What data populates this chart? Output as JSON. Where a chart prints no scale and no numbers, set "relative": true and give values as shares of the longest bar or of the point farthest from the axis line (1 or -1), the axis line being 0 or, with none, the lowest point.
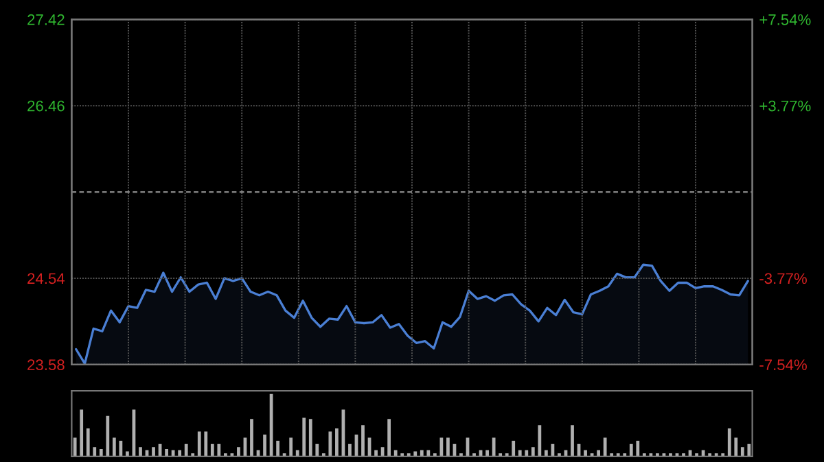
{
  "chart_data": [
    {
      "type": "area",
      "categories": [
        null,
        null,
        null,
        null,
        null,
        null,
        null,
        null,
        null,
        null,
        null,
        null,
        null,
        null,
        null,
        null,
        null,
        null,
        null,
        null,
        null,
        null,
        null,
        null,
        null,
        null,
        null,
        null,
        null,
        null,
        null,
        null,
        null,
        null,
        null,
        null,
        null,
        null,
        null,
        null,
        null,
        null,
        null,
        null,
        null,
        null,
        null,
        null,
        null,
        null,
        null,
        null,
        null,
        null,
        null,
        null,
        null,
        null,
        null,
        null,
        null,
        null,
        null,
        null,
        null,
        null,
        null,
        null,
        null,
        null,
        null,
        null,
        null,
        null,
        null,
        null,
        null,
        null
      ],
      "series": [
        {
          "color": "#4a7fd4",
          "values": [
            23.75,
            23.59,
            23.98,
            23.95,
            24.18,
            24.05,
            24.23,
            24.21,
            24.41,
            24.39,
            24.6,
            24.39,
            24.55,
            24.39,
            24.47,
            24.49,
            24.31,
            24.54,
            24.51,
            24.54,
            24.39,
            24.35,
            24.39,
            24.35,
            24.18,
            24.1,
            24.29,
            24.1,
            24.0,
            24.09,
            24.08,
            24.23,
            24.05,
            24.04,
            24.05,
            24.13,
            23.99,
            24.03,
            23.9,
            23.82,
            23.84,
            23.76,
            24.05,
            24.0,
            24.11,
            24.4,
            24.31,
            24.34,
            24.29,
            24.35,
            24.36,
            24.25,
            24.18,
            24.06,
            24.21,
            24.13,
            24.3,
            24.16,
            24.14,
            24.36,
            24.4,
            24.45,
            24.59,
            24.55,
            24.55,
            24.69,
            24.68,
            24.51,
            24.4,
            24.49,
            24.49,
            24.43,
            24.45,
            24.45,
            24.41,
            24.36,
            24.35,
            24.51
          ]
        }
      ],
      "ylim": [
        23.58,
        27.42
      ],
      "yticks": [
        23.58,
        24.54,
        26.46,
        27.42
      ],
      "y2lim": [
        -7.54,
        7.54
      ],
      "y2ticks": [
        {
          "value": -7.54,
          "label": "-7.54%"
        },
        {
          "value": -3.77,
          "label": "-3.77%"
        },
        {
          "value": 3.77,
          "label": "+3.77%"
        },
        {
          "value": 7.54,
          "label": "+7.54%"
        }
      ],
      "ref_lines": [
        {
          "axis": "y",
          "value": 25.5,
          "color": "#888888",
          "line_style": "dashed"
        }
      ],
      "grid": true,
      "legend": false
    },
    {
      "type": "bar",
      "relative": true,
      "legend": false,
      "color": "#b0b0b0",
      "categories": [
        null,
        null,
        null,
        null,
        null,
        null,
        null,
        null,
        null,
        null,
        null,
        null,
        null,
        null,
        null,
        null,
        null,
        null,
        null,
        null,
        null,
        null,
        null,
        null,
        null,
        null,
        null,
        null,
        null,
        null,
        null,
        null,
        null,
        null,
        null,
        null,
        null,
        null,
        null,
        null,
        null,
        null,
        null,
        null,
        null,
        null,
        null,
        null,
        null,
        null,
        null,
        null,
        null,
        null,
        null,
        null,
        null,
        null,
        null,
        null,
        null,
        null,
        null,
        null,
        null,
        null,
        null,
        null,
        null,
        null,
        null,
        null,
        null,
        null,
        null,
        null,
        null,
        null,
        null,
        null,
        null,
        null,
        null,
        null,
        null,
        null,
        null,
        null,
        null,
        null,
        null,
        null,
        null,
        null,
        null,
        null,
        null,
        null,
        null,
        null,
        null,
        null,
        null,
        null
      ],
      "values": [
        0.3,
        0.75,
        0.45,
        0.15,
        0.12,
        0.65,
        0.3,
        0.25,
        0.08,
        0.75,
        0.15,
        0.1,
        0.15,
        0.2,
        0.12,
        0.1,
        0.1,
        0.2,
        0.05,
        0.4,
        0.4,
        0.2,
        0.2,
        0.05,
        0.05,
        0.15,
        0.3,
        0.6,
        0.1,
        0.35,
        1.0,
        0.25,
        0.05,
        0.3,
        0.1,
        0.62,
        0.6,
        0.2,
        0.05,
        0.4,
        0.45,
        0.75,
        0.2,
        0.35,
        0.5,
        0.3,
        0.1,
        0.15,
        0.6,
        0.1,
        0.05,
        0.05,
        0.08,
        0.1,
        0.1,
        0.05,
        0.3,
        0.3,
        0.2,
        0.05,
        0.3,
        0.05,
        0.1,
        0.1,
        0.3,
        0.05,
        0.05,
        0.25,
        0.1,
        0.1,
        0.15,
        0.5,
        0.1,
        0.2,
        0.05,
        0.1,
        0.5,
        0.2,
        0.1,
        0.05,
        0.1,
        0.3,
        0.05,
        0.05,
        0.05,
        0.2,
        0.25,
        0.05,
        0.05,
        0.05,
        0.05,
        0.05,
        0.05,
        0.05,
        0.1,
        0.05,
        0.1,
        0.05,
        0.05,
        0.05,
        0.45,
        0.3,
        0.15,
        0.2
      ]
    }
  ]
}
